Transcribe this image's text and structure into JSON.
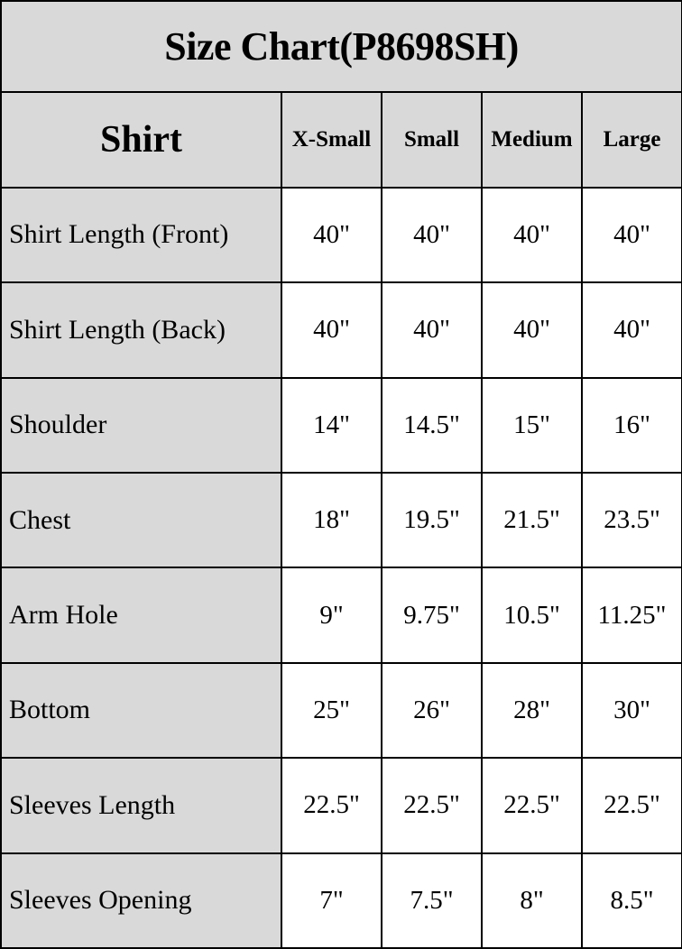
{
  "title": "Size Chart(P8698SH)",
  "chart_data": {
    "type": "table",
    "title": "Size Chart(P8698SH)",
    "columns": [
      "Shirt",
      "X-Small",
      "Small",
      "Medium",
      "Large"
    ],
    "rows": [
      {
        "label": "Shirt Length (Front)",
        "values": [
          "40\"",
          "40\"",
          "40\"",
          "40\""
        ]
      },
      {
        "label": "Shirt Length (Back)",
        "values": [
          "40\"",
          "40\"",
          "40\"",
          "40\""
        ]
      },
      {
        "label": "Shoulder",
        "values": [
          "14\"",
          "14.5\"",
          "15\"",
          "16\""
        ]
      },
      {
        "label": "Chest",
        "values": [
          "18\"",
          "19.5\"",
          "21.5\"",
          "23.5\""
        ]
      },
      {
        "label": "Arm Hole",
        "values": [
          "9\"",
          "9.75\"",
          "10.5\"",
          "11.25\""
        ]
      },
      {
        "label": "Bottom",
        "values": [
          "25\"",
          "26\"",
          "28\"",
          "30\""
        ]
      },
      {
        "label": "Sleeves Length",
        "values": [
          "22.5\"",
          "22.5\"",
          "22.5\"",
          "22.5\""
        ]
      },
      {
        "label": "Sleeves Opening",
        "values": [
          "7\"",
          "7.5\"",
          "8\"",
          "8.5\""
        ]
      }
    ],
    "layout": {
      "header_bg": "#d9d9d9",
      "label_column_bg": "#d9d9d9",
      "cell_bg": "#ffffff",
      "border_color": "#000000",
      "text_color": "#000000"
    }
  }
}
